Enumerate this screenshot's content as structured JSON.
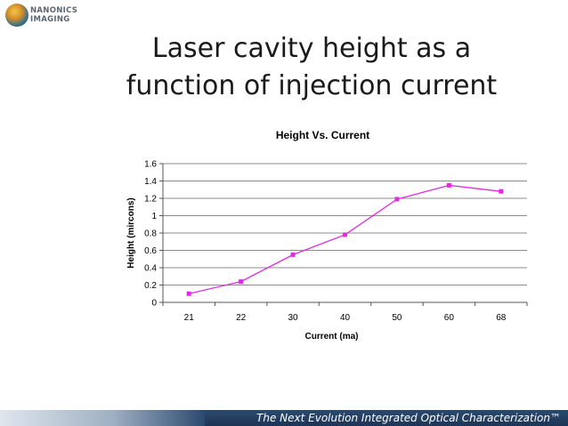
{
  "logo": {
    "line1": "NANONICS",
    "line2": "IMAGING"
  },
  "slide": {
    "title_line1": "Laser cavity height as a",
    "title_line2": "function of injection current"
  },
  "footer": {
    "text": "The Next Evolution Integrated Optical Characterization™"
  },
  "chart_data": {
    "type": "line",
    "title": "Height Vs. Current",
    "xlabel": "Current (ma)",
    "ylabel": "Height (mircons)",
    "categories": [
      "21",
      "22",
      "30",
      "40",
      "50",
      "60",
      "68"
    ],
    "series": [
      {
        "values": [
          0.1,
          0.24,
          0.55,
          0.78,
          1.19,
          1.35,
          1.28
        ]
      }
    ],
    "ylim": [
      0,
      1.6
    ],
    "yticks": [
      "0",
      "0.2",
      "0.4",
      "0.6",
      "0.8",
      "1",
      "1.2",
      "1.4",
      "1.6"
    ],
    "grid": true,
    "series_color": "#e02ce0"
  }
}
